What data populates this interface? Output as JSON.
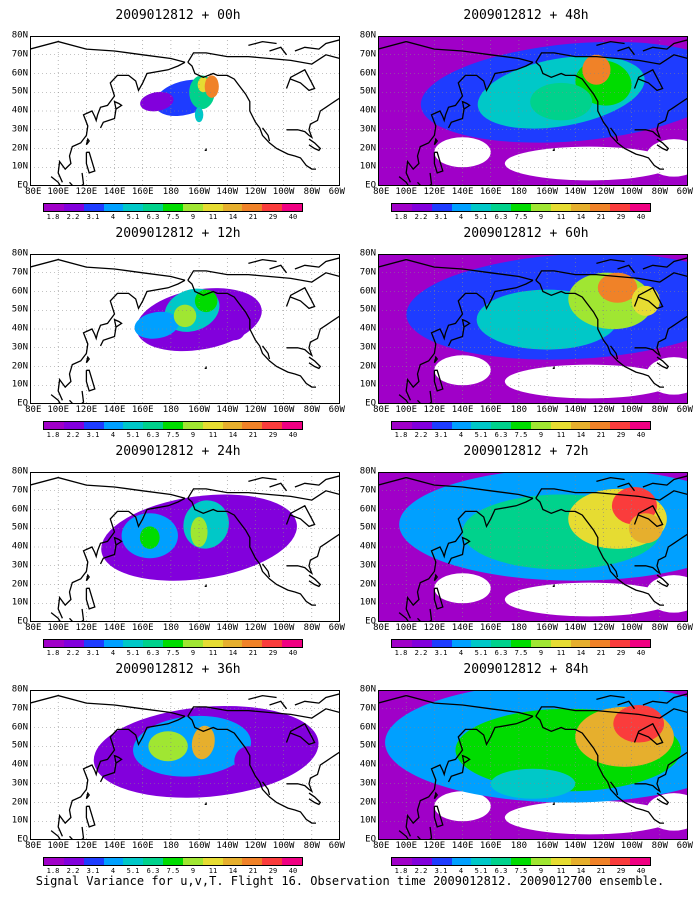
{
  "caption": "Signal Variance for u,v,T. Flight 16. Observation time 2009012812. 2009012700 ensemble.",
  "lat_labels": [
    "80N",
    "70N",
    "60N",
    "50N",
    "40N",
    "30N",
    "20N",
    "10N",
    "EQ"
  ],
  "lon_labels": [
    "80E",
    "100E",
    "120E",
    "140E",
    "160E",
    "180",
    "160W",
    "140W",
    "120W",
    "100W",
    "80W",
    "60W"
  ],
  "colorbar_labels": [
    "1.8",
    "2.2",
    "3.1",
    "4",
    "5.1",
    "6.3",
    "7.5",
    "9",
    "11",
    "14",
    "21",
    "29",
    "40"
  ],
  "colorbar_colors": [
    "#a000c8",
    "#8200dc",
    "#1e3cff",
    "#00a0ff",
    "#00c8c8",
    "#00d28c",
    "#00dc00",
    "#a0e632",
    "#e6dc32",
    "#e6af2d",
    "#f08228",
    "#fa3c3c",
    "#f00082"
  ],
  "panels": [
    {
      "title": "2009012812 + 00h",
      "lead_hours": 0
    },
    {
      "title": "2009012812 + 48h",
      "lead_hours": 48
    },
    {
      "title": "2009012812 + 12h",
      "lead_hours": 12
    },
    {
      "title": "2009012812 + 60h",
      "lead_hours": 60
    },
    {
      "title": "2009012812 + 24h",
      "lead_hours": 24
    },
    {
      "title": "2009012812 + 72h",
      "lead_hours": 72
    },
    {
      "title": "2009012812 + 36h",
      "lead_hours": 36
    },
    {
      "title": "2009012812 + 84h",
      "lead_hours": 84
    }
  ]
}
